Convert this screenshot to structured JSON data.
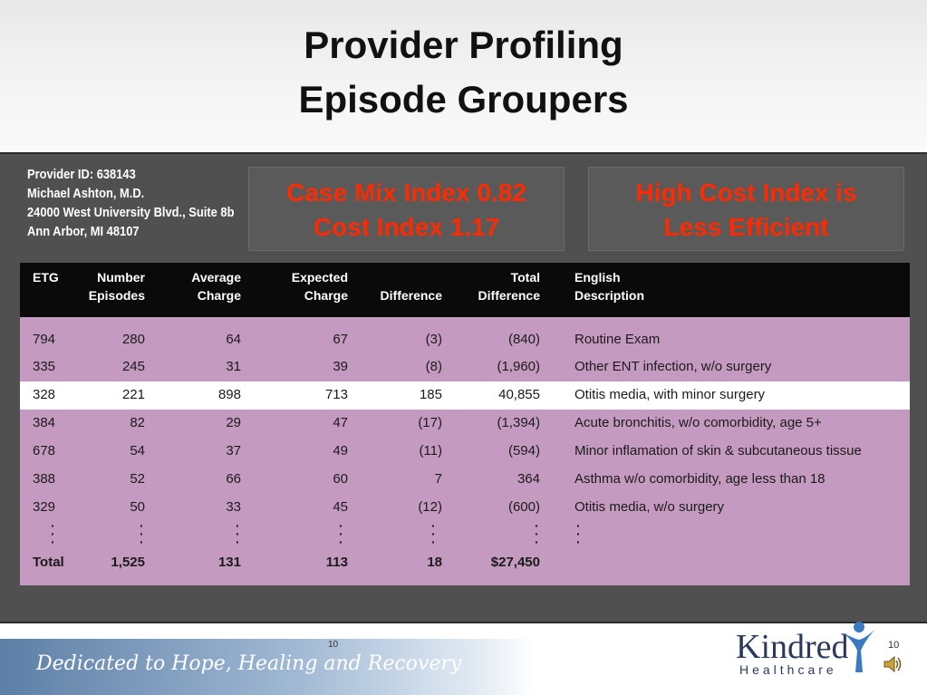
{
  "header": {
    "title_line1": "Provider Profiling",
    "title_line2": "Episode Groupers"
  },
  "provider": {
    "id": "Provider ID: 638143",
    "name": "Michael Ashton, M.D.",
    "address": "24000 West University Blvd., Suite 8b",
    "city": "Ann Arbor, MI 48107"
  },
  "callouts": {
    "left_line1": "Case Mix Index 0.82",
    "left_line2": "Cost Index 1.17",
    "right_line1": "High Cost Index is",
    "right_line2": "Less Efficient"
  },
  "table": {
    "headers": [
      [
        "ETG",
        ""
      ],
      [
        "Number",
        "Episodes"
      ],
      [
        "Average",
        "Charge"
      ],
      [
        "Expected",
        "Charge"
      ],
      [
        "",
        "Difference"
      ],
      [
        "Total",
        "Difference"
      ],
      [
        "English",
        "Description"
      ]
    ],
    "rows": [
      [
        "794",
        "280",
        "64",
        "67",
        "(3)",
        "(840)",
        "Routine Exam"
      ],
      [
        "335",
        "245",
        "31",
        "39",
        "(8)",
        "(1,960)",
        "Other ENT infection, w/o surgery"
      ],
      [
        "328",
        "221",
        "898",
        "713",
        "185",
        "40,855",
        "Otitis media, with minor surgery"
      ],
      [
        "384",
        "82",
        "29",
        "47",
        "(17)",
        "(1,394)",
        "Acute bronchitis, w/o comorbidity, age 5+"
      ],
      [
        "678",
        "54",
        "37",
        "49",
        "(11)",
        "(594)",
        "Minor inflamation of skin & subcutaneous tissue"
      ],
      [
        "388",
        "52",
        "66",
        "60",
        "7",
        "364",
        "Asthma w/o comorbidity, age less than 18"
      ],
      [
        "329",
        "50",
        "33",
        "45",
        "(12)",
        "(600)",
        "Otitis media, w/o surgery"
      ]
    ],
    "highlight_row": 2,
    "total": [
      "Total",
      "1,525",
      "131",
      "113",
      "18",
      "$27,450",
      ""
    ]
  },
  "footer": {
    "tagline": "Dedicated to Hope, Healing and Recovery",
    "slide_number": "10",
    "logo_name": "Kindred",
    "logo_sub": "Healthcare",
    "slide_number_right": "10"
  },
  "colors": {
    "callout_text": "#ff2a00",
    "table_bg": "#c59ac0",
    "panel_bg": "#505050"
  },
  "icons": {
    "speaker": "speaker-icon",
    "logo": "kindred-figure-icon"
  }
}
